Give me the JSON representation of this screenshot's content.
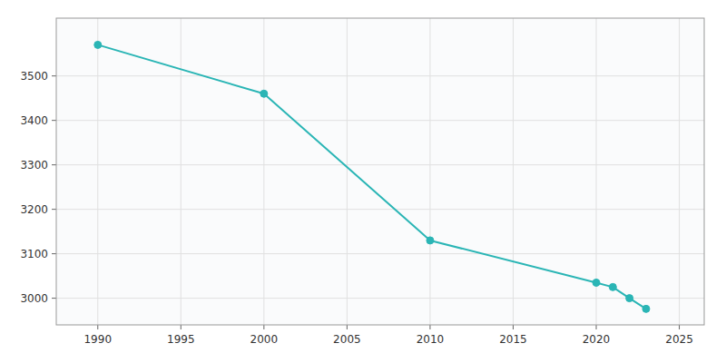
{
  "chart_data": {
    "type": "line",
    "x": [
      1990,
      2000,
      2010,
      2020,
      2021,
      2022,
      2023
    ],
    "values": [
      3570,
      3460,
      3130,
      3035,
      3025,
      3000,
      2976
    ],
    "color": "#2ab5b5",
    "marker": "circle",
    "line_style": "solid",
    "xlim": [
      1987.5,
      2026.5
    ],
    "ylim": [
      2940,
      3630
    ],
    "xticks": [
      1990,
      1995,
      2000,
      2005,
      2010,
      2015,
      2020,
      2025
    ],
    "yticks": [
      3000,
      3100,
      3200,
      3300,
      3400,
      3500
    ],
    "grid": true
  }
}
